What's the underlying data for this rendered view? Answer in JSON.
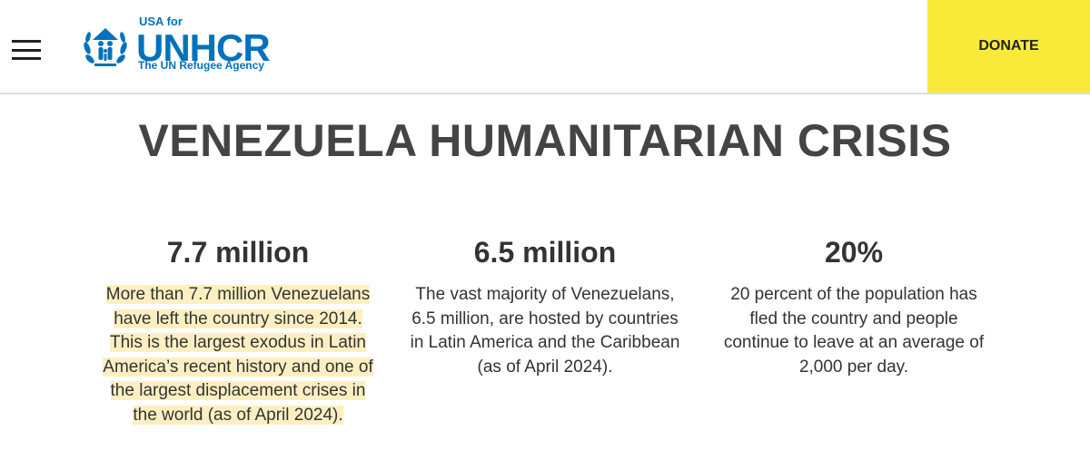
{
  "header": {
    "logo": {
      "prefix": "USA for",
      "name": "UNHCR",
      "tagline": "The UN Refugee Agency"
    },
    "donate": "DONATE"
  },
  "title": "VENEZUELA HUMANITARIAN CRISIS",
  "stats": [
    {
      "figure": "7.7 million",
      "text": "More than 7.7 million Venezuelans have left the country since 2014. This is the largest exodus in Latin America’s recent history and one of the largest displacement crises in the world (as of April 2024)."
    },
    {
      "figure": "6.5 million",
      "text": "The vast majority of Venezuelans, 6.5 million, are hosted by countries in Latin America and the Caribbean (as of April 2024)."
    },
    {
      "figure": "20%",
      "text": "20 percent of the population has fled the country and people continue to leave at an average of 2,000 per day."
    }
  ]
}
